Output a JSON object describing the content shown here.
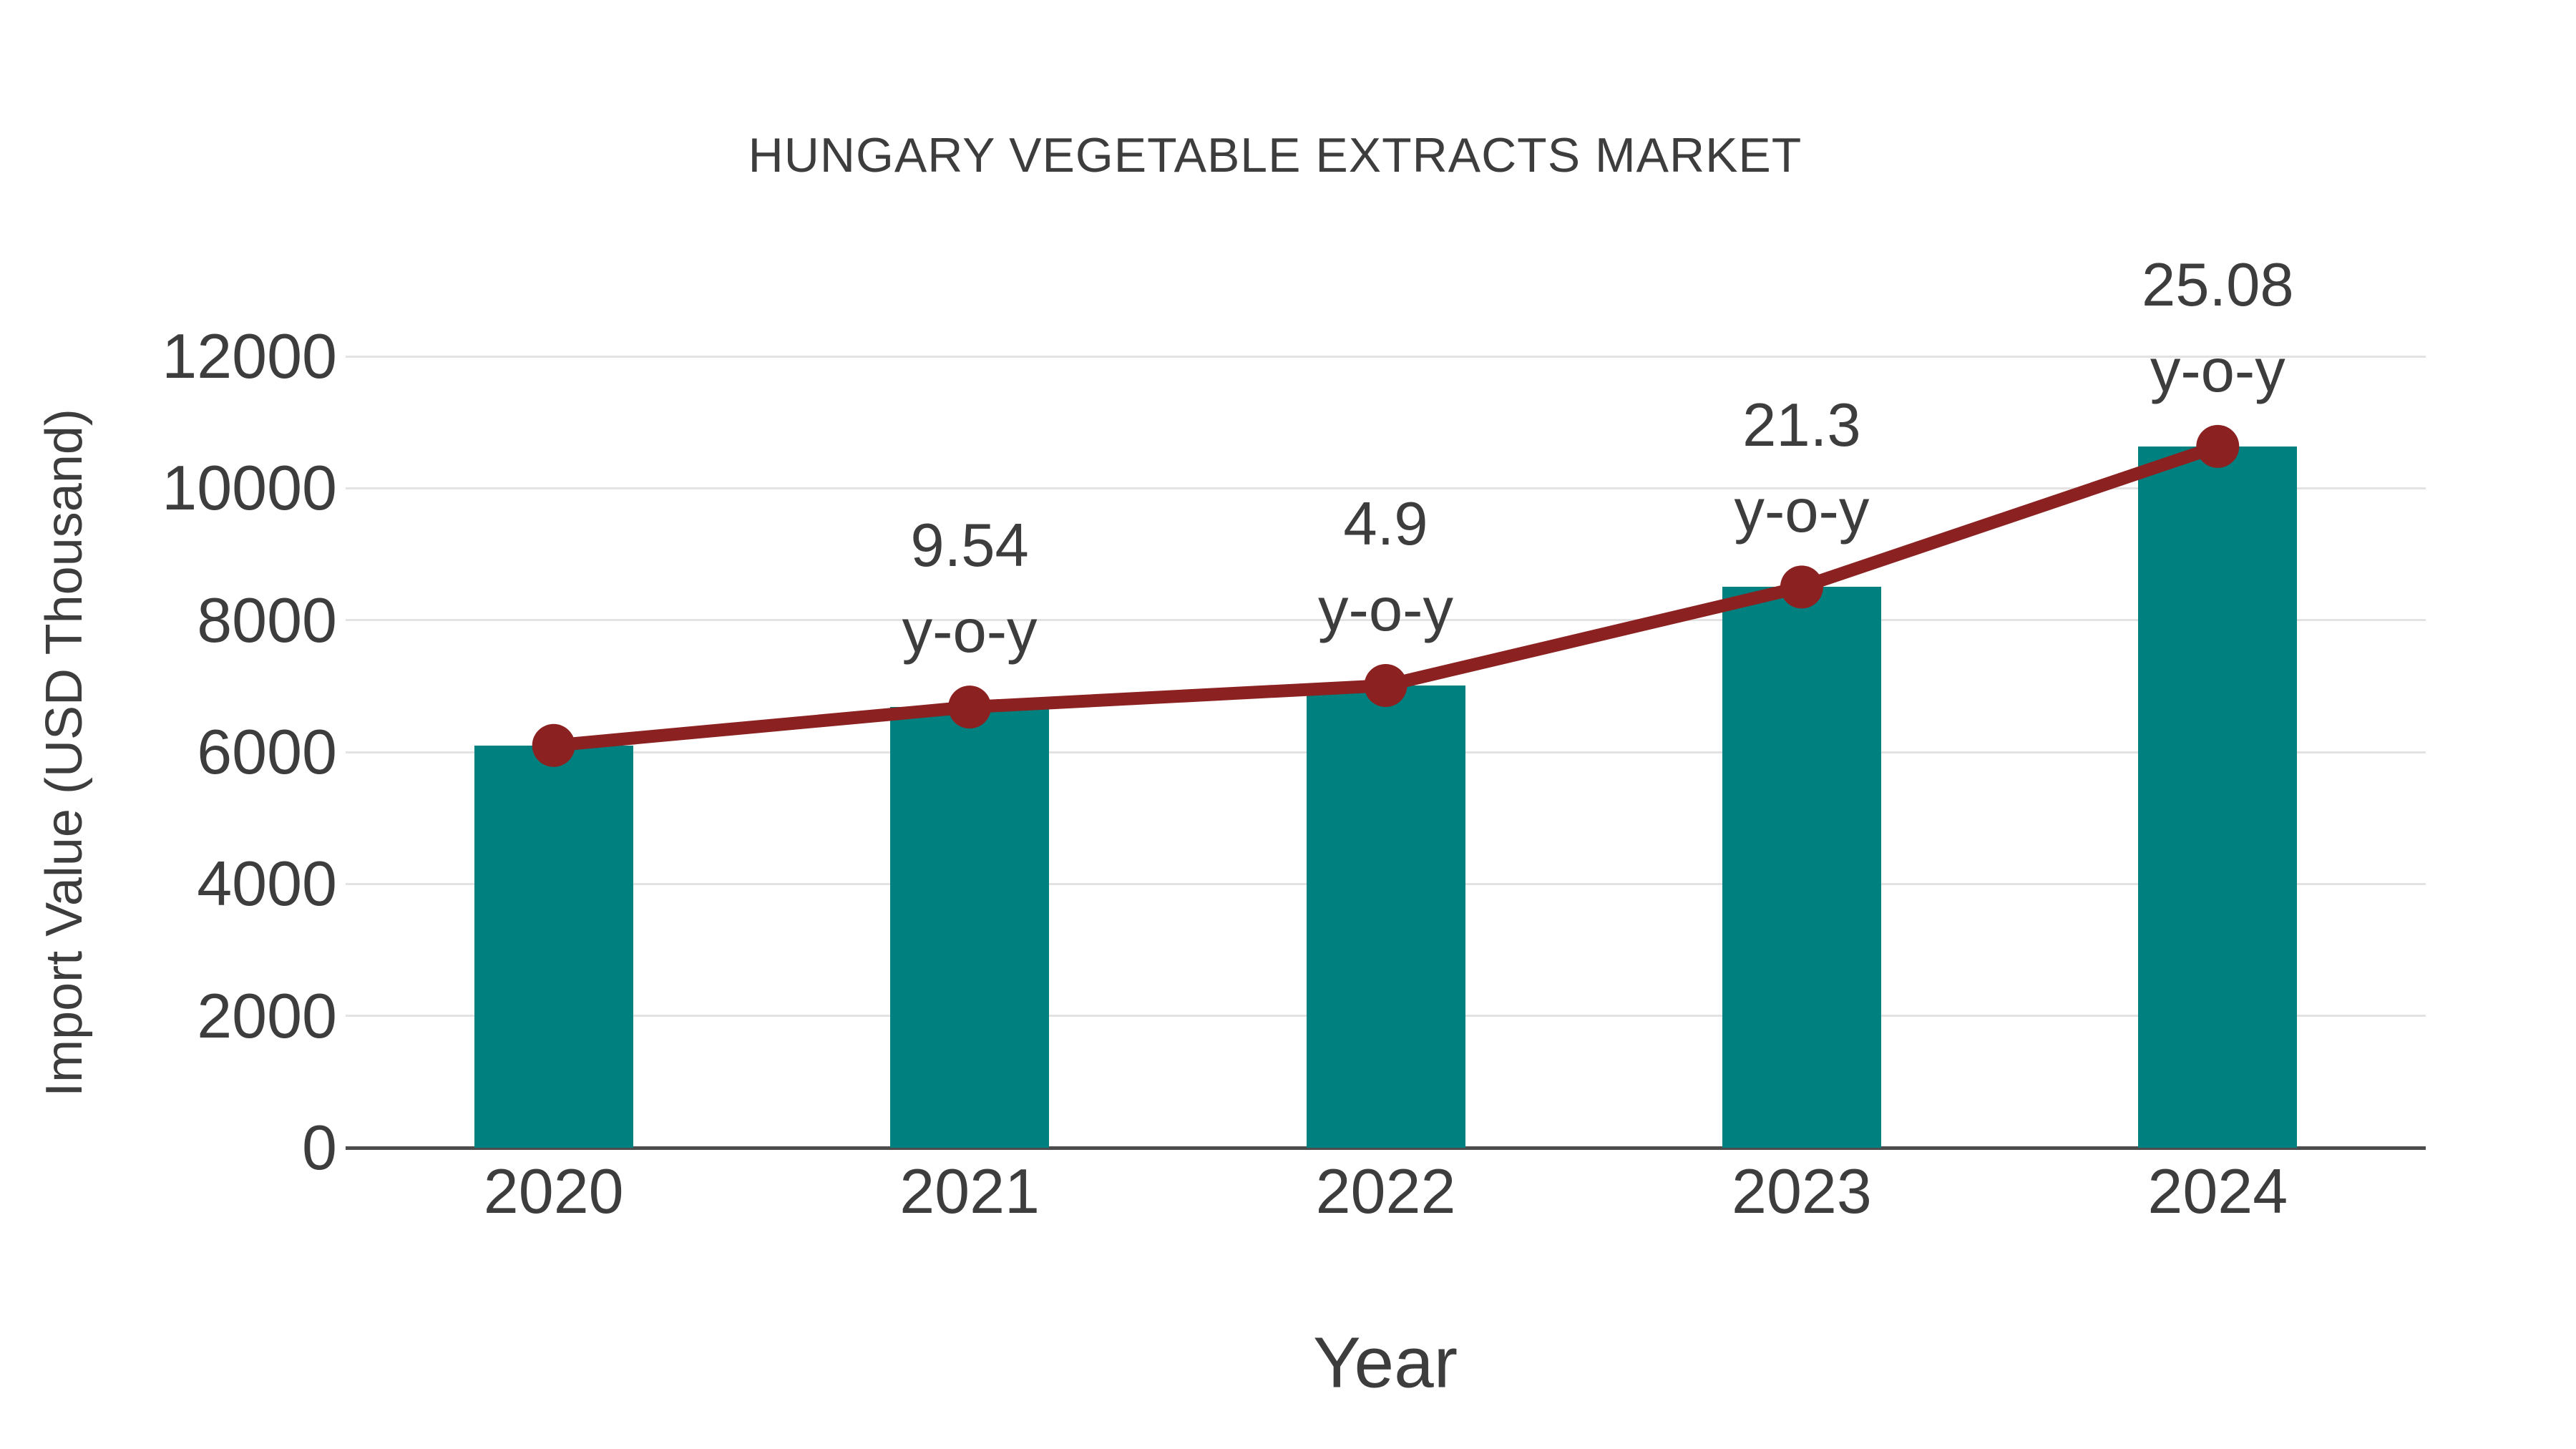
{
  "chart_data": {
    "type": "bar",
    "title": "HUNGARY VEGETABLE EXTRACTS MARKET",
    "xlabel": "Year",
    "ylabel": "Import Value (USD Thousand)",
    "categories": [
      "2020",
      "2021",
      "2022",
      "2023",
      "2024"
    ],
    "values": [
      6100,
      6682,
      7009,
      8502,
      10634
    ],
    "ylim": [
      0,
      12000
    ],
    "yticks": [
      0,
      2000,
      4000,
      6000,
      8000,
      10000,
      12000
    ],
    "grid": "horizontal-light",
    "legend_position": "none",
    "line_overlay": {
      "name": "import-value-trend",
      "follows_bar_tops": true,
      "annotations": [
        {
          "category": "2021",
          "value": "9.54",
          "suffix": "y-o-y"
        },
        {
          "category": "2022",
          "value": "4.9",
          "suffix": "y-o-y"
        },
        {
          "category": "2023",
          "value": "21.3",
          "suffix": "y-o-y"
        },
        {
          "category": "2024",
          "value": "25.08",
          "suffix": "y-o-y"
        }
      ]
    },
    "colors": {
      "bar": "#00807E",
      "line": "#8B2121",
      "text": "#3D3D3D",
      "grid": "#E3E3E3",
      "axis": "#4D4D4D",
      "background": "#FFFFFF"
    }
  }
}
